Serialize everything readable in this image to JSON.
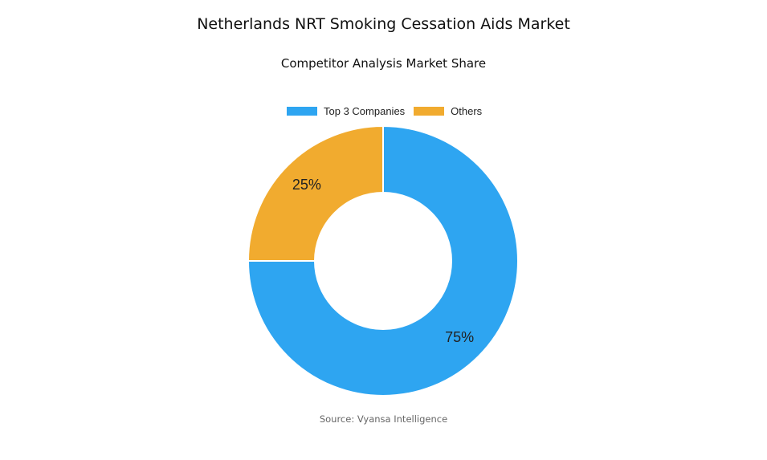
{
  "chart_data": {
    "type": "pie",
    "variant": "donut",
    "title": "Netherlands NRT Smoking Cessation Aids Market",
    "subtitle": "Competitor Analysis Market Share",
    "legend_position": "top",
    "categories": [
      "Top 3 Companies",
      "Others"
    ],
    "values": [
      75,
      25
    ],
    "data_labels": [
      "75%",
      "25%"
    ],
    "colors": [
      "#2EA5F1",
      "#F1AB2F"
    ]
  },
  "source": "Source: Vyansa Intelligence"
}
